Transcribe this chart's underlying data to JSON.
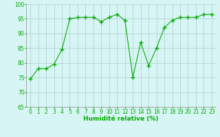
{
  "x": [
    0,
    1,
    2,
    3,
    4,
    5,
    6,
    7,
    8,
    9,
    10,
    11,
    12,
    13,
    14,
    15,
    16,
    17,
    18,
    19,
    20,
    21,
    22,
    23
  ],
  "y": [
    74.5,
    78,
    78,
    79.5,
    84.5,
    95,
    95.5,
    95.5,
    95.5,
    94,
    95.5,
    96.5,
    94.5,
    75,
    87,
    79,
    85,
    92,
    94.5,
    95.5,
    95.5,
    95.5,
    96.5,
    96.5
  ],
  "line_color": "#00aa00",
  "marker": "+",
  "marker_size": 4,
  "bg_color": "#d8f5f5",
  "grid_color": "#aacccc",
  "xlabel": "Humidité relative (%)",
  "xlabel_color": "#00aa00",
  "xlabel_fontsize": 6.5,
  "tick_color": "#00aa00",
  "tick_fontsize": 5.5,
  "ylim": [
    65,
    100
  ],
  "xlim": [
    -0.5,
    23.5
  ],
  "yticks": [
    65,
    70,
    75,
    80,
    85,
    90,
    95,
    100
  ],
  "xticks": [
    0,
    1,
    2,
    3,
    4,
    5,
    6,
    7,
    8,
    9,
    10,
    11,
    12,
    13,
    14,
    15,
    16,
    17,
    18,
    19,
    20,
    21,
    22,
    23
  ]
}
